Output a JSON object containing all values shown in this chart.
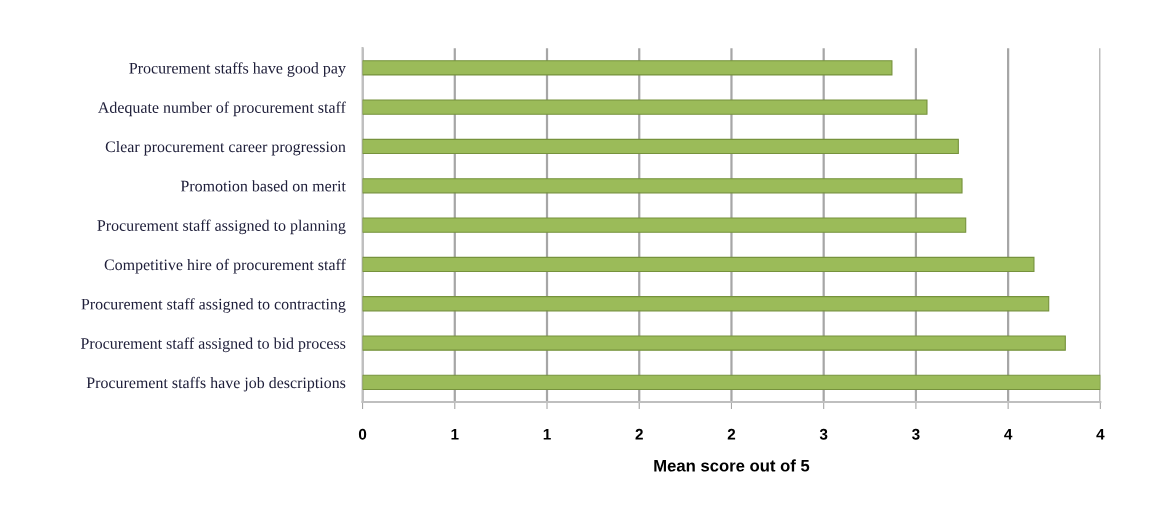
{
  "chart_data": {
    "type": "bar",
    "orientation": "horizontal",
    "categories": [
      "Procurement staffs have good pay",
      "Adequate number of procurement staff",
      "Clear procurement career progression",
      "Promotion based on merit",
      "Procurement staff assigned to planning",
      "Competitive hire of procurement staff",
      "Procurement staff assigned to contracting",
      "Procurement staff assigned to bid process",
      "Procurement staffs have job descriptions"
    ],
    "values": [
      2.87,
      3.06,
      3.23,
      3.25,
      3.27,
      3.64,
      3.72,
      3.81,
      4.0
    ],
    "color": "#9bbb59",
    "xlabel": "Mean score out of 5",
    "xlim": [
      0,
      4
    ],
    "xticks": [
      0,
      {
        "value": 0.5,
        "label": "1"
      },
      1,
      {
        "value": 1.5,
        "label": "2"
      },
      2,
      {
        "value": 2.5,
        "label": "3"
      },
      3,
      {
        "value": 3.5,
        "label": "4"
      },
      4
    ],
    "grid": "x",
    "legend": false
  }
}
